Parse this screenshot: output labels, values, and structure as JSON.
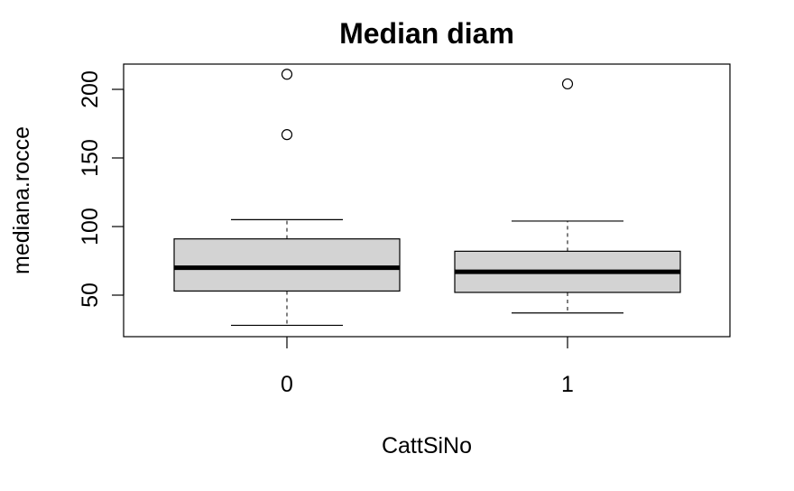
{
  "chart_data": {
    "type": "boxplot",
    "title": "Median diam",
    "xlabel": "CattSiNo",
    "ylabel": "mediana.rocce",
    "categories": [
      "0",
      "1"
    ],
    "yticks": [
      50,
      100,
      150,
      200
    ],
    "ylim": [
      22,
      220
    ],
    "boxes": [
      {
        "category": "0",
        "whisker_low": 28,
        "q1": 53,
        "median": 70,
        "q3": 91,
        "whisker_high": 105,
        "outliers": [
          167,
          211
        ]
      },
      {
        "category": "1",
        "whisker_low": 37,
        "q1": 52,
        "median": 67,
        "q3": 82,
        "whisker_high": 104,
        "outliers": [
          204
        ]
      }
    ],
    "colors": {
      "box_fill": "#d3d3d3",
      "stroke": "#000000"
    }
  }
}
